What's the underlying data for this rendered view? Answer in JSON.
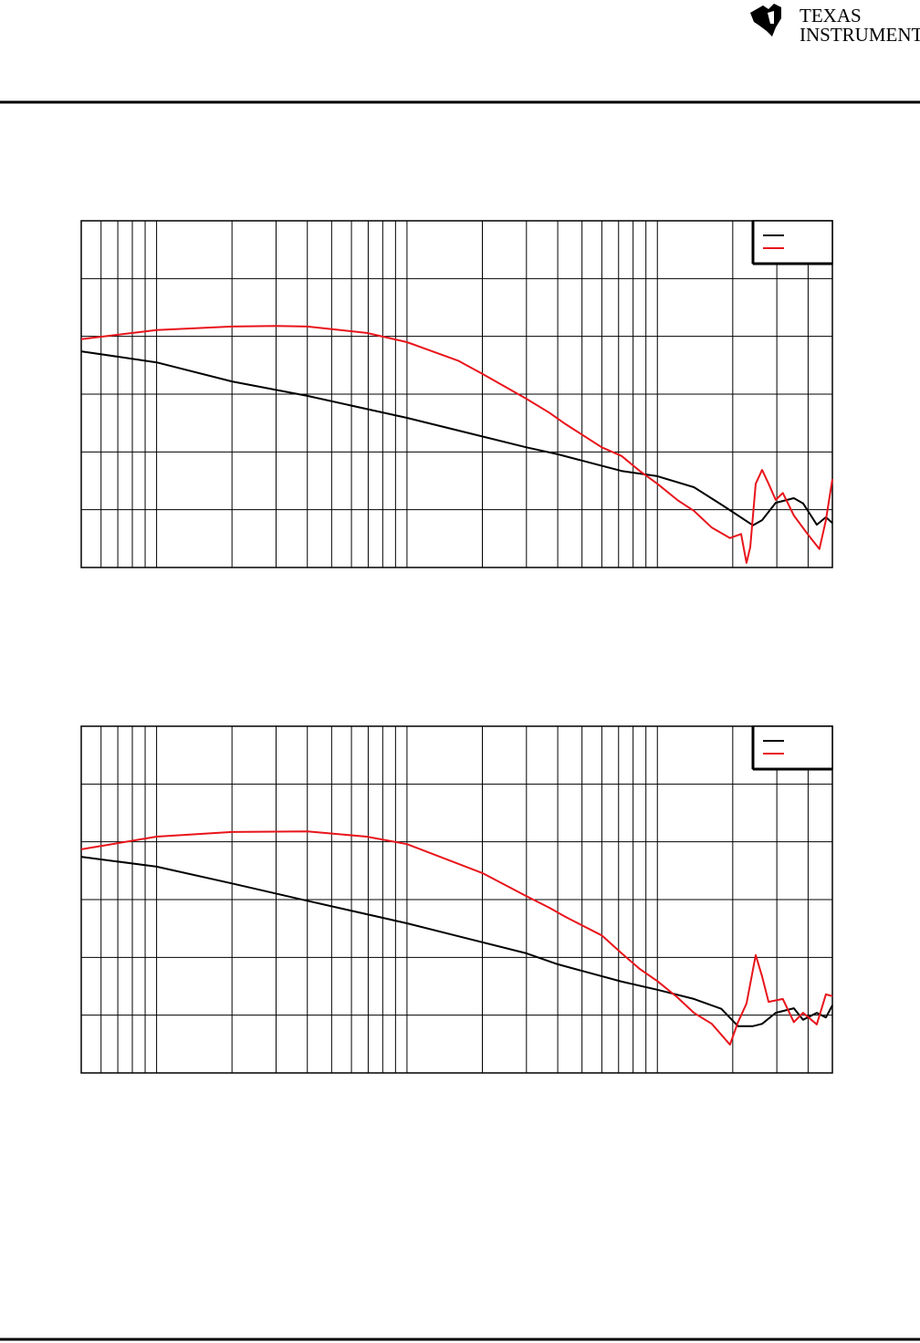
{
  "header": {
    "logo_line1": "TEXAS",
    "logo_line2": "INSTRUMENTS"
  },
  "chart_data": [
    {
      "type": "line",
      "log_x": true,
      "grid": true,
      "legend": "upper right",
      "xlim": [
        50,
        50000
      ],
      "ylim": [
        0,
        6
      ],
      "xticks": [
        50,
        60,
        70,
        80,
        90,
        100,
        200,
        300,
        400,
        500,
        600,
        700,
        800,
        900,
        1000,
        2000,
        3000,
        4000,
        5000,
        6000,
        7000,
        8000,
        9000,
        10000,
        20000,
        30000,
        40000,
        50000
      ],
      "yticks": [
        0,
        1,
        2,
        3,
        4,
        5,
        6
      ],
      "series": [
        {
          "color": "#000000",
          "x": [
            50,
            100,
            200,
            400,
            1000,
            3000,
            4000,
            7200,
            10000,
            14000,
            18000,
            21000,
            24100,
            26200,
            29700,
            35100,
            38200,
            43300,
            47100,
            50000
          ],
          "values": [
            3.74,
            3.55,
            3.22,
            2.97,
            2.59,
            2.08,
            1.96,
            1.67,
            1.58,
            1.39,
            1.09,
            0.9,
            0.73,
            0.82,
            1.12,
            1.2,
            1.11,
            0.74,
            0.87,
            0.77
          ]
        },
        {
          "color": "#e8141b",
          "x": [
            50,
            100,
            200,
            300,
            400,
            690,
            1000,
            1600,
            2000,
            3000,
            3700,
            4300,
            6000,
            7200,
            8500,
            10000,
            12000,
            14000,
            16500,
            19500,
            21600,
            22700,
            23500,
            24700,
            26200,
            27800,
            29700,
            31700,
            35100,
            39800,
            44400,
            47100,
            50000
          ],
          "values": [
            3.95,
            4.11,
            4.17,
            4.18,
            4.17,
            4.06,
            3.9,
            3.58,
            3.35,
            2.92,
            2.68,
            2.48,
            2.08,
            1.93,
            1.67,
            1.45,
            1.17,
            0.98,
            0.69,
            0.51,
            0.58,
            0.08,
            0.35,
            1.45,
            1.69,
            1.45,
            1.17,
            1.29,
            0.9,
            0.58,
            0.32,
            0.82,
            1.53
          ]
        }
      ]
    },
    {
      "type": "line",
      "log_x": true,
      "grid": true,
      "legend": "upper right",
      "xlim": [
        50,
        50000
      ],
      "ylim": [
        0,
        6
      ],
      "xticks": [
        50,
        60,
        70,
        80,
        90,
        100,
        200,
        300,
        400,
        500,
        600,
        700,
        800,
        900,
        1000,
        2000,
        3000,
        4000,
        5000,
        6000,
        7000,
        8000,
        9000,
        10000,
        20000,
        30000,
        40000,
        50000
      ],
      "yticks": [
        0,
        1,
        2,
        3,
        4,
        5,
        6
      ],
      "series": [
        {
          "color": "#000000",
          "x": [
            50,
            100,
            200,
            400,
            1000,
            3000,
            4000,
            7200,
            10000,
            14000,
            18000,
            21000,
            24100,
            26200,
            29700,
            35100,
            38200,
            43300,
            47100,
            50000
          ],
          "values": [
            3.74,
            3.57,
            3.28,
            2.98,
            2.59,
            2.07,
            1.88,
            1.58,
            1.44,
            1.28,
            1.11,
            0.81,
            0.81,
            0.85,
            1.04,
            1.12,
            0.92,
            1.04,
            0.96,
            1.17
          ]
        },
        {
          "color": "#e8141b",
          "x": [
            50,
            100,
            200,
            400,
            690,
            1000,
            2000,
            3000,
            3700,
            4300,
            6000,
            7200,
            8500,
            10000,
            12000,
            14000,
            16500,
            19500,
            21000,
            22700,
            24700,
            26200,
            27800,
            31700,
            35100,
            38200,
            43300,
            47100,
            50000
          ],
          "values": [
            3.87,
            4.09,
            4.17,
            4.18,
            4.09,
            3.96,
            3.46,
            3.06,
            2.86,
            2.7,
            2.38,
            2.07,
            1.8,
            1.59,
            1.31,
            1.04,
            0.85,
            0.49,
            0.88,
            1.2,
            2.04,
            1.67,
            1.23,
            1.28,
            0.88,
            1.04,
            0.84,
            1.36,
            1.33
          ]
        }
      ]
    }
  ]
}
